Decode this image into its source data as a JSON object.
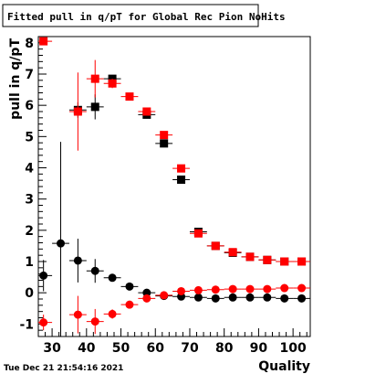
{
  "chart_data": {
    "type": "scatter",
    "title": "Fitted pull in q/pT for Global Rec Pion NoHits",
    "xlabel": "Quality",
    "ylabel": "pull in q/pT",
    "footer": "Tue Dec 21 21:54:16 2021",
    "xlim": [
      26,
      105
    ],
    "ylim": [
      -1.4,
      8.2
    ],
    "x_ticks": [
      30,
      40,
      50,
      60,
      70,
      80,
      90,
      100
    ],
    "y_ticks": [
      -1,
      0,
      1,
      2,
      3,
      4,
      5,
      6,
      7,
      8
    ],
    "x_halfwidth": 2.5,
    "grid": false,
    "legend": "none",
    "series": [
      {
        "marker": "square",
        "color": "#000000",
        "points": [
          {
            "x": 37.5,
            "y": 5.85,
            "err": 0.25
          },
          {
            "x": 42.5,
            "y": 5.95,
            "err": 0.4
          },
          {
            "x": 47.5,
            "y": 6.85,
            "err": 0.1
          },
          {
            "x": 57.5,
            "y": 5.7,
            "err": 0.05
          },
          {
            "x": 62.5,
            "y": 4.78,
            "err": 0.05
          },
          {
            "x": 67.5,
            "y": 3.62,
            "err": 0.05
          },
          {
            "x": 72.5,
            "y": 1.95,
            "err": 0.03
          },
          {
            "x": 77.5,
            "y": 1.5,
            "err": 0.03
          },
          {
            "x": 82.5,
            "y": 1.28,
            "err": 0.03
          },
          {
            "x": 87.5,
            "y": 1.15,
            "err": 0.03
          },
          {
            "x": 92.5,
            "y": 1.05,
            "err": 0.03
          },
          {
            "x": 97.5,
            "y": 1.0,
            "err": 0.03
          },
          {
            "x": 102.5,
            "y": 1.0,
            "err": 0.03
          }
        ]
      },
      {
        "marker": "square",
        "color": "#ff0000",
        "points": [
          {
            "x": 27.5,
            "y": 8.05,
            "err": 0.1
          },
          {
            "x": 37.5,
            "y": 5.8,
            "err": 1.25
          },
          {
            "x": 42.5,
            "y": 6.85,
            "err": 0.6
          },
          {
            "x": 47.5,
            "y": 6.7,
            "err": 0.15
          },
          {
            "x": 52.5,
            "y": 6.28,
            "err": 0.05
          },
          {
            "x": 57.5,
            "y": 5.8,
            "err": 0.05
          },
          {
            "x": 62.5,
            "y": 5.05,
            "err": 0.05
          },
          {
            "x": 67.5,
            "y": 3.98,
            "err": 0.05
          },
          {
            "x": 72.5,
            "y": 1.9,
            "err": 0.03
          },
          {
            "x": 77.5,
            "y": 1.5,
            "err": 0.03
          },
          {
            "x": 82.5,
            "y": 1.3,
            "err": 0.03
          },
          {
            "x": 87.5,
            "y": 1.15,
            "err": 0.03
          },
          {
            "x": 92.5,
            "y": 1.05,
            "err": 0.03
          },
          {
            "x": 97.5,
            "y": 1.0,
            "err": 0.03
          },
          {
            "x": 102.5,
            "y": 1.0,
            "err": 0.03
          }
        ]
      },
      {
        "marker": "circle",
        "color": "#000000",
        "points": [
          {
            "x": 27.5,
            "y": 0.55,
            "err": 0.5
          },
          {
            "x": 32.5,
            "y": 1.58,
            "err": 3.25
          },
          {
            "x": 37.5,
            "y": 1.03,
            "err": 0.7
          },
          {
            "x": 42.5,
            "y": 0.7,
            "err": 0.38
          },
          {
            "x": 47.5,
            "y": 0.48,
            "err": 0.1
          },
          {
            "x": 52.5,
            "y": 0.2,
            "err": 0.05
          },
          {
            "x": 57.5,
            "y": 0.0,
            "err": 0.04
          },
          {
            "x": 62.5,
            "y": -0.1,
            "err": 0.03
          },
          {
            "x": 67.5,
            "y": -0.12,
            "err": 0.03
          },
          {
            "x": 72.5,
            "y": -0.15,
            "err": 0.03
          },
          {
            "x": 77.5,
            "y": -0.18,
            "err": 0.03
          },
          {
            "x": 82.5,
            "y": -0.15,
            "err": 0.03
          },
          {
            "x": 87.5,
            "y": -0.15,
            "err": 0.03
          },
          {
            "x": 92.5,
            "y": -0.15,
            "err": 0.03
          },
          {
            "x": 97.5,
            "y": -0.18,
            "err": 0.03
          },
          {
            "x": 102.5,
            "y": -0.18,
            "err": 0.03
          }
        ]
      },
      {
        "marker": "circle",
        "color": "#ff0000",
        "points": [
          {
            "x": 27.5,
            "y": -0.95,
            "err": 0.25
          },
          {
            "x": 37.5,
            "y": -0.7,
            "err": 0.6
          },
          {
            "x": 42.5,
            "y": -0.92,
            "err": 0.4
          },
          {
            "x": 47.5,
            "y": -0.68,
            "err": 0.15
          },
          {
            "x": 52.5,
            "y": -0.38,
            "err": 0.05
          },
          {
            "x": 57.5,
            "y": -0.18,
            "err": 0.04
          },
          {
            "x": 62.5,
            "y": -0.08,
            "err": 0.03
          },
          {
            "x": 67.5,
            "y": 0.05,
            "err": 0.03
          },
          {
            "x": 72.5,
            "y": 0.08,
            "err": 0.03
          },
          {
            "x": 77.5,
            "y": 0.1,
            "err": 0.03
          },
          {
            "x": 82.5,
            "y": 0.12,
            "err": 0.03
          },
          {
            "x": 87.5,
            "y": 0.12,
            "err": 0.03
          },
          {
            "x": 92.5,
            "y": 0.12,
            "err": 0.03
          },
          {
            "x": 97.5,
            "y": 0.15,
            "err": 0.03
          },
          {
            "x": 102.5,
            "y": 0.15,
            "err": 0.03
          }
        ]
      }
    ]
  }
}
